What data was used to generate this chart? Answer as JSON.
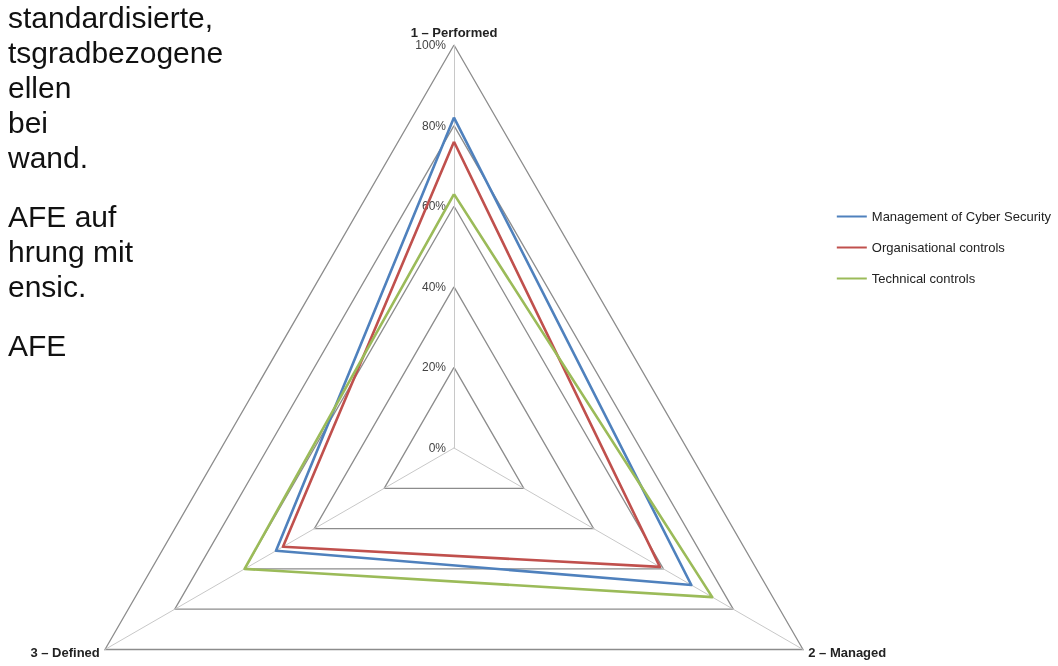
{
  "chart_data": {
    "type": "radar",
    "categories": [
      "1 – Performed",
      "2 – Managed",
      "3 – Defined"
    ],
    "series": [
      {
        "name": "Management of Cyber Security",
        "color": "#4f81bd",
        "values": [
          82,
          68,
          51
        ]
      },
      {
        "name": "Organisational controls",
        "color": "#c0504d",
        "values": [
          76,
          59,
          49
        ]
      },
      {
        "name": "Technical controls",
        "color": "#9bbb59",
        "values": [
          63,
          74,
          60
        ]
      }
    ],
    "ylim": [
      0,
      100
    ],
    "yticks": [
      {
        "value": 0,
        "label": "0%"
      },
      {
        "value": 20,
        "label": "20%"
      },
      {
        "value": 40,
        "label": "40%"
      },
      {
        "value": 60,
        "label": "60%"
      },
      {
        "value": 80,
        "label": "80%"
      },
      {
        "value": 100,
        "label": "100%"
      }
    ],
    "grid": true,
    "legend": "right",
    "marker": "none",
    "line_style": "solid",
    "annotations": [
      "standardisierte,",
      "tsgradbezogene",
      "ellen",
      "bei",
      "wand.",
      "AFE auf",
      "hrung mit",
      "ensic.",
      "AFE"
    ]
  }
}
